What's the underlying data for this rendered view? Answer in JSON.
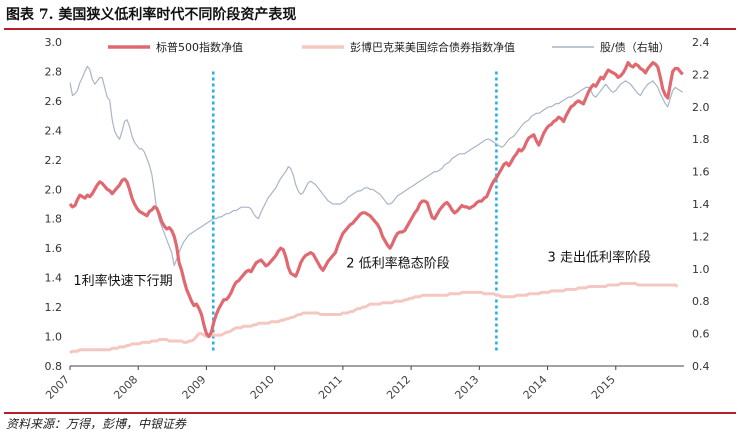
{
  "figure": {
    "title": "图表 7. 美国狭义低利率时代不同阶段资产表现",
    "source": "资料来源：万得，彭博，中银证券"
  },
  "chart_data": {
    "type": "line",
    "x_start": 2007.0,
    "x_end": 2015.98,
    "xticks": [
      "2007",
      "2008",
      "2009",
      "2010",
      "2011",
      "2012",
      "2013",
      "2014",
      "2015"
    ],
    "xlim": [
      2007,
      2016
    ],
    "ylim_left": [
      0.8,
      3.0
    ],
    "yticks_left": [
      "0.8",
      "1.0",
      "1.2",
      "1.4",
      "1.6",
      "1.8",
      "2.0",
      "2.2",
      "2.4",
      "2.6",
      "2.8",
      "3.0"
    ],
    "ylim_right": [
      0.4,
      2.4
    ],
    "yticks_right": [
      "0.4",
      "0.6",
      "0.8",
      "1.0",
      "1.2",
      "1.4",
      "1.6",
      "1.8",
      "2.0",
      "2.2",
      "2.4"
    ],
    "legend_position": "top",
    "series": [
      {
        "name": "标普500指数净值",
        "axis": "left",
        "color": "#e06870",
        "values": [
          1.9,
          1.88,
          1.89,
          1.93,
          1.96,
          1.95,
          1.94,
          1.96,
          1.95,
          1.97,
          2.0,
          2.03,
          2.05,
          2.04,
          2.02,
          2.0,
          1.99,
          1.97,
          1.99,
          2.01,
          2.03,
          2.06,
          2.07,
          2.05,
          2.0,
          1.94,
          1.9,
          1.87,
          1.85,
          1.84,
          1.83,
          1.82,
          1.85,
          1.86,
          1.88,
          1.87,
          1.83,
          1.78,
          1.75,
          1.73,
          1.74,
          1.72,
          1.68,
          1.61,
          1.5,
          1.45,
          1.38,
          1.32,
          1.28,
          1.24,
          1.21,
          1.22,
          1.19,
          1.15,
          1.08,
          1.02,
          1.0,
          1.03,
          1.1,
          1.15,
          1.19,
          1.22,
          1.25,
          1.25,
          1.27,
          1.3,
          1.34,
          1.37,
          1.38,
          1.4,
          1.42,
          1.44,
          1.45,
          1.44,
          1.47,
          1.5,
          1.51,
          1.52,
          1.5,
          1.48,
          1.49,
          1.51,
          1.53,
          1.55,
          1.58,
          1.6,
          1.59,
          1.54,
          1.47,
          1.43,
          1.42,
          1.41,
          1.45,
          1.5,
          1.53,
          1.55,
          1.56,
          1.57,
          1.56,
          1.53,
          1.5,
          1.47,
          1.45,
          1.48,
          1.51,
          1.53,
          1.55,
          1.57,
          1.62,
          1.66,
          1.7,
          1.72,
          1.74,
          1.76,
          1.77,
          1.79,
          1.81,
          1.83,
          1.84,
          1.84,
          1.83,
          1.82,
          1.8,
          1.78,
          1.76,
          1.73,
          1.68,
          1.65,
          1.62,
          1.6,
          1.63,
          1.67,
          1.7,
          1.71,
          1.71,
          1.72,
          1.75,
          1.78,
          1.81,
          1.84,
          1.86,
          1.9,
          1.92,
          1.92,
          1.91,
          1.86,
          1.81,
          1.8,
          1.83,
          1.86,
          1.88,
          1.9,
          1.91,
          1.89,
          1.86,
          1.84,
          1.85,
          1.87,
          1.89,
          1.88,
          1.88,
          1.87,
          1.88,
          1.89,
          1.91,
          1.92,
          1.92,
          1.94,
          1.95,
          1.99,
          2.03,
          2.06,
          2.08,
          2.11,
          2.14,
          2.17,
          2.18,
          2.16,
          2.19,
          2.22,
          2.24,
          2.27,
          2.26,
          2.28,
          2.32,
          2.35,
          2.36,
          2.37,
          2.33,
          2.3,
          2.34,
          2.38,
          2.41,
          2.43,
          2.44,
          2.46,
          2.47,
          2.49,
          2.48,
          2.46,
          2.5,
          2.53,
          2.56,
          2.57,
          2.59,
          2.6,
          2.59,
          2.58,
          2.62,
          2.66,
          2.69,
          2.71,
          2.7,
          2.73,
          2.76,
          2.75,
          2.78,
          2.81,
          2.8,
          2.79,
          2.78,
          2.76,
          2.77,
          2.79,
          2.82,
          2.86,
          2.84,
          2.83,
          2.85,
          2.84,
          2.82,
          2.81,
          2.79,
          2.82,
          2.84,
          2.86,
          2.85,
          2.83,
          2.76,
          2.68,
          2.64,
          2.62,
          2.71,
          2.8,
          2.82,
          2.82,
          2.8,
          2.78
        ]
      },
      {
        "name": "彭博巴克莱美国综合债券指数净值",
        "axis": "left",
        "color": "#f4c8c0",
        "values": [
          0.89,
          0.9,
          0.9,
          0.9,
          0.91,
          0.91,
          0.91,
          0.91,
          0.91,
          0.91,
          0.91,
          0.91,
          0.91,
          0.91,
          0.91,
          0.91,
          0.91,
          0.92,
          0.92,
          0.92,
          0.93,
          0.93,
          0.93,
          0.94,
          0.94,
          0.95,
          0.95,
          0.95,
          0.95,
          0.96,
          0.96,
          0.96,
          0.96,
          0.97,
          0.97,
          0.97,
          0.98,
          0.98,
          0.98,
          0.98,
          0.97,
          0.97,
          0.97,
          0.97,
          0.97,
          0.97,
          0.96,
          0.96,
          0.97,
          0.97,
          0.98,
          1.0,
          1.02,
          1.02,
          1.01,
          1.0,
          1.0,
          1.01,
          1.01,
          1.01,
          1.01,
          1.01,
          1.02,
          1.03,
          1.03,
          1.04,
          1.05,
          1.06,
          1.06,
          1.06,
          1.07,
          1.07,
          1.07,
          1.07,
          1.08,
          1.08,
          1.09,
          1.09,
          1.09,
          1.09,
          1.09,
          1.1,
          1.1,
          1.1,
          1.1,
          1.11,
          1.11,
          1.12,
          1.12,
          1.13,
          1.13,
          1.14,
          1.15,
          1.15,
          1.16,
          1.16,
          1.16,
          1.16,
          1.16,
          1.16,
          1.16,
          1.15,
          1.15,
          1.15,
          1.15,
          1.15,
          1.15,
          1.15,
          1.15,
          1.15,
          1.16,
          1.16,
          1.16,
          1.17,
          1.17,
          1.18,
          1.19,
          1.19,
          1.2,
          1.2,
          1.21,
          1.22,
          1.22,
          1.22,
          1.22,
          1.22,
          1.23,
          1.23,
          1.23,
          1.23,
          1.23,
          1.24,
          1.24,
          1.24,
          1.24,
          1.25,
          1.25,
          1.26,
          1.26,
          1.27,
          1.27,
          1.27,
          1.28,
          1.28,
          1.28,
          1.28,
          1.28,
          1.28,
          1.28,
          1.28,
          1.28,
          1.28,
          1.28,
          1.29,
          1.29,
          1.29,
          1.29,
          1.29,
          1.3,
          1.3,
          1.3,
          1.3,
          1.3,
          1.3,
          1.3,
          1.3,
          1.3,
          1.29,
          1.29,
          1.29,
          1.29,
          1.29,
          1.28,
          1.28,
          1.27,
          1.27,
          1.27,
          1.27,
          1.27,
          1.27,
          1.28,
          1.28,
          1.28,
          1.28,
          1.28,
          1.29,
          1.29,
          1.29,
          1.29,
          1.29,
          1.3,
          1.3,
          1.3,
          1.3,
          1.31,
          1.31,
          1.31,
          1.31,
          1.31,
          1.31,
          1.32,
          1.32,
          1.32,
          1.32,
          1.32,
          1.33,
          1.33,
          1.33,
          1.33,
          1.34,
          1.34,
          1.34,
          1.34,
          1.34,
          1.34,
          1.34,
          1.34,
          1.35,
          1.35,
          1.35,
          1.35,
          1.35,
          1.36,
          1.36,
          1.36,
          1.36,
          1.36,
          1.36,
          1.36,
          1.35,
          1.35,
          1.35,
          1.35,
          1.35,
          1.35,
          1.35,
          1.35,
          1.35,
          1.35,
          1.35,
          1.35,
          1.35,
          1.35,
          1.35,
          1.35,
          1.34
        ]
      },
      {
        "name": "股/债（右轴）",
        "axis": "right",
        "color": "#a9b4c8",
        "values": [
          2.15,
          2.07,
          2.08,
          2.1,
          2.15,
          2.18,
          2.22,
          2.25,
          2.23,
          2.17,
          2.14,
          2.16,
          2.18,
          2.18,
          2.12,
          2.06,
          2.04,
          1.92,
          1.85,
          1.82,
          1.8,
          1.85,
          1.91,
          1.92,
          1.88,
          1.82,
          1.78,
          1.76,
          1.74,
          1.74,
          1.72,
          1.68,
          1.64,
          1.58,
          1.48,
          1.36,
          1.3,
          1.26,
          1.22,
          1.18,
          1.14,
          1.1,
          1.02,
          1.06,
          1.1,
          1.14,
          1.17,
          1.19,
          1.21,
          1.22,
          1.23,
          1.24,
          1.25,
          1.26,
          1.27,
          1.28,
          1.29,
          1.3,
          1.31,
          1.31,
          1.32,
          1.32,
          1.33,
          1.34,
          1.34,
          1.35,
          1.36,
          1.36,
          1.37,
          1.38,
          1.38,
          1.38,
          1.38,
          1.37,
          1.34,
          1.32,
          1.31,
          1.35,
          1.38,
          1.41,
          1.44,
          1.46,
          1.48,
          1.5,
          1.53,
          1.56,
          1.58,
          1.6,
          1.63,
          1.62,
          1.58,
          1.52,
          1.48,
          1.46,
          1.47,
          1.5,
          1.53,
          1.54,
          1.53,
          1.52,
          1.5,
          1.48,
          1.46,
          1.44,
          1.42,
          1.41,
          1.4,
          1.4,
          1.4,
          1.4,
          1.41,
          1.42,
          1.44,
          1.45,
          1.46,
          1.47,
          1.48,
          1.48,
          1.49,
          1.5,
          1.5,
          1.49,
          1.49,
          1.48,
          1.47,
          1.46,
          1.44,
          1.42,
          1.4,
          1.4,
          1.41,
          1.43,
          1.45,
          1.46,
          1.47,
          1.48,
          1.49,
          1.5,
          1.51,
          1.52,
          1.53,
          1.54,
          1.55,
          1.56,
          1.57,
          1.58,
          1.59,
          1.6,
          1.6,
          1.61,
          1.62,
          1.64,
          1.65,
          1.66,
          1.68,
          1.69,
          1.7,
          1.71,
          1.71,
          1.71,
          1.72,
          1.73,
          1.74,
          1.75,
          1.76,
          1.77,
          1.78,
          1.79,
          1.8,
          1.8,
          1.79,
          1.78,
          1.77,
          1.76,
          1.75,
          1.76,
          1.78,
          1.8,
          1.81,
          1.82,
          1.84,
          1.86,
          1.88,
          1.9,
          1.91,
          1.92,
          1.94,
          1.95,
          1.96,
          1.96,
          1.97,
          1.98,
          1.99,
          2.0,
          2.0,
          2.01,
          2.02,
          2.02,
          2.03,
          2.04,
          2.05,
          2.06,
          2.06,
          2.07,
          2.08,
          2.09,
          2.1,
          2.11,
          2.12,
          2.12,
          2.1,
          2.07,
          2.06,
          2.08,
          2.1,
          2.12,
          2.14,
          2.12,
          2.1,
          2.09,
          2.1,
          2.12,
          2.14,
          2.15,
          2.16,
          2.15,
          2.14,
          2.12,
          2.1,
          2.08,
          2.07,
          2.1,
          2.12,
          2.14,
          2.15,
          2.16,
          2.14,
          2.12,
          2.08,
          2.05,
          2.02,
          2.0,
          2.05,
          2.1,
          2.12,
          2.11,
          2.1,
          2.09
        ]
      }
    ],
    "stage_lines_x": [
      2009.1,
      2013.25
    ],
    "stage_line_color": "#1fb0e0",
    "annotations": [
      {
        "text": "1利率快速下行期",
        "x": 2007.05,
        "y": 1.35
      },
      {
        "text": "2 低利率稳态阶段",
        "x": 2011.05,
        "y": 1.47
      },
      {
        "text": "3 走出低利率阶段",
        "x": 2014.0,
        "y": 1.51
      }
    ]
  }
}
